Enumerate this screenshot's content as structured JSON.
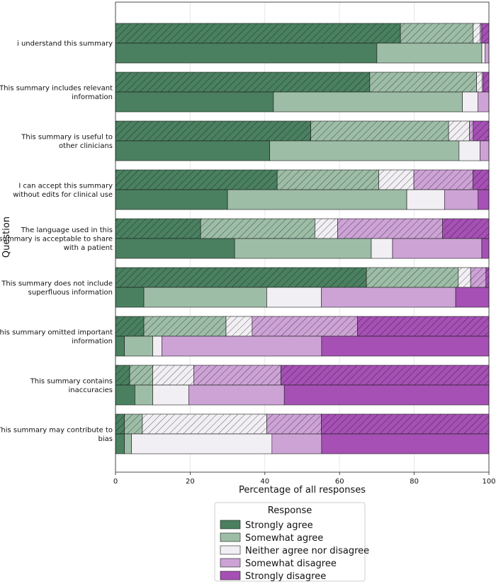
{
  "chart_data": {
    "type": "bar",
    "orientation": "horizontal-stacked",
    "xlabel": "Percentage of all responses",
    "ylabel": "Question",
    "xlim": [
      0,
      100
    ],
    "xticks": [
      0,
      20,
      40,
      60,
      80,
      100
    ],
    "grid": true,
    "legend_title": "Response",
    "legend_position": "bottom-center",
    "categories": [
      "Strongly agree",
      "Somewhat agree",
      "Neither agree nor disagree",
      "Somewhat disagree",
      "Strongly disagree"
    ],
    "colors": [
      "#4a8060",
      "#9dbda7",
      "#f1eff3",
      "#cda3d6",
      "#a650b5"
    ],
    "row_variants": [
      "hatched",
      "solid"
    ],
    "questions": [
      {
        "label": [
          "i understand this summary"
        ],
        "hatched": [
          76.3,
          19.5,
          1.9,
          0.4,
          1.9
        ],
        "solid": [
          70.0,
          28.1,
          0.9,
          1.0,
          0.0
        ]
      },
      {
        "label": [
          "This summary includes relevant",
          "information"
        ],
        "hatched": [
          68.1,
          28.6,
          1.5,
          0.4,
          1.4
        ],
        "solid": [
          42.3,
          50.6,
          4.2,
          2.9,
          0.0
        ]
      },
      {
        "label": [
          "This summary is useful to",
          "other clinicians"
        ],
        "hatched": [
          52.3,
          36.9,
          5.6,
          1.0,
          4.2
        ],
        "solid": [
          41.3,
          50.7,
          5.6,
          2.4,
          0.0
        ]
      },
      {
        "label": [
          "I can accept this summary",
          "without edits for clinical use"
        ],
        "hatched": [
          43.3,
          27.2,
          9.4,
          15.8,
          4.3
        ],
        "solid": [
          30.0,
          48.0,
          10.1,
          9.0,
          2.9
        ]
      },
      {
        "label": [
          "The language used in this",
          "summary is acceptable to share",
          "with a patient"
        ],
        "hatched": [
          22.8,
          30.6,
          6.1,
          28.1,
          12.4
        ],
        "solid": [
          31.9,
          36.6,
          5.7,
          23.9,
          1.9
        ]
      },
      {
        "label": [
          "This summary does not include",
          "superfluous information"
        ],
        "hatched": [
          67.2,
          24.6,
          3.3,
          4.1,
          0.8
        ],
        "solid": [
          7.6,
          32.9,
          14.6,
          36.0,
          8.9
        ]
      },
      {
        "label": [
          "This summary omitted important",
          "information"
        ],
        "hatched": [
          7.6,
          22.0,
          7.0,
          28.2,
          35.2
        ],
        "solid": [
          2.4,
          7.6,
          2.4,
          42.8,
          44.8
        ]
      },
      {
        "label": [
          "This summary contains",
          "inaccuracies"
        ],
        "hatched": [
          3.8,
          6.2,
          11.0,
          23.3,
          55.7
        ],
        "solid": [
          5.2,
          4.8,
          9.6,
          25.6,
          54.8
        ]
      },
      {
        "label": [
          "This summary may contribute to",
          "bias"
        ],
        "hatched": [
          2.4,
          4.8,
          33.3,
          14.6,
          44.9
        ],
        "solid": [
          2.4,
          1.9,
          37.6,
          13.3,
          44.8
        ]
      }
    ]
  }
}
